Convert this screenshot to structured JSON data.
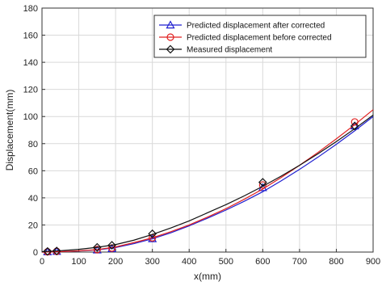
{
  "chart_data": {
    "type": "line",
    "xlabel": "x(mm)",
    "ylabel": "Displacement(mm)",
    "xlim": [
      0,
      900
    ],
    "ylim": [
      0,
      180
    ],
    "xticks": [
      0,
      100,
      200,
      300,
      400,
      500,
      600,
      700,
      800,
      900
    ],
    "yticks": [
      0,
      20,
      40,
      60,
      80,
      100,
      120,
      140,
      160,
      180
    ],
    "grid": true,
    "legend_position": "top-right",
    "series": [
      {
        "name": "Predicted displacement after corrected",
        "color": "#1f1fd0",
        "marker": "triangle",
        "x": [
          15,
          40,
          150,
          190,
          300,
          600,
          850
        ],
        "y": [
          0.2,
          0.5,
          1.5,
          2.5,
          9.8,
          47.5,
          93
        ],
        "curve_x": [
          0,
          50,
          100,
          150,
          200,
          250,
          300,
          350,
          400,
          450,
          500,
          550,
          600,
          650,
          700,
          750,
          800,
          850,
          900
        ],
        "curve_y": [
          0,
          0.3,
          0.8,
          1.6,
          3.3,
          6.2,
          9.8,
          14.2,
          19.3,
          25,
          31,
          37.5,
          44.5,
          52.5,
          61,
          70,
          79.5,
          89.5,
          100
        ]
      },
      {
        "name": "Predicted displacement before corrected",
        "color": "#e02020",
        "marker": "circle",
        "x": [
          15,
          40,
          150,
          190,
          300,
          600,
          850
        ],
        "y": [
          0.2,
          0.5,
          1.8,
          3,
          10.5,
          49.5,
          96
        ],
        "curve_x": [
          0,
          50,
          100,
          150,
          200,
          250,
          300,
          350,
          400,
          450,
          500,
          550,
          600,
          650,
          700,
          750,
          800,
          850,
          900
        ],
        "curve_y": [
          0,
          0.3,
          0.9,
          1.8,
          3.8,
          7,
          10.5,
          15,
          20,
          25.8,
          32,
          39,
          46.5,
          55,
          64,
          73.5,
          83.5,
          94,
          105
        ]
      },
      {
        "name": "Measured displacement",
        "color": "#111111",
        "marker": "diamond",
        "x": [
          15,
          40,
          150,
          190,
          300,
          600,
          850
        ],
        "y": [
          0.5,
          0.8,
          3.5,
          5,
          13.5,
          51.5,
          93
        ],
        "curve_x": [
          0,
          50,
          100,
          150,
          200,
          250,
          300,
          350,
          400,
          450,
          500,
          550,
          600,
          650,
          700,
          750,
          800,
          850,
          900
        ],
        "curve_y": [
          0.3,
          1,
          2,
          3.5,
          5.5,
          8.8,
          13,
          17.8,
          23,
          29,
          35,
          41.5,
          48.5,
          56,
          64,
          72.5,
          81.5,
          91,
          101
        ]
      }
    ]
  }
}
